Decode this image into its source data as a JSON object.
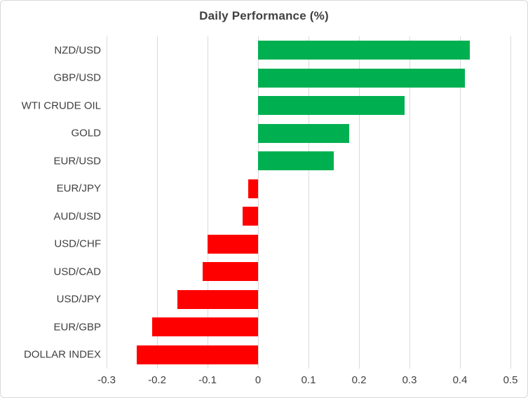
{
  "chart_data": {
    "type": "bar",
    "orientation": "horizontal",
    "title": "Daily Performance (%)",
    "categories": [
      "NZD/USD",
      "GBP/USD",
      "WTI CRUDE OIL",
      "GOLD",
      "EUR/USD",
      "EUR/JPY",
      "AUD/USD",
      "USD/CHF",
      "USD/CAD",
      "USD/JPY",
      "EUR/GBP",
      "DOLLAR INDEX"
    ],
    "values": [
      0.42,
      0.41,
      0.29,
      0.18,
      0.15,
      -0.02,
      -0.03,
      -0.1,
      -0.11,
      -0.16,
      -0.21,
      -0.24
    ],
    "xlim": [
      -0.3,
      0.5
    ],
    "ticks": [
      {
        "value": -0.3,
        "label": "-0.3"
      },
      {
        "value": -0.2,
        "label": "-0.2"
      },
      {
        "value": -0.1,
        "label": "-0.1"
      },
      {
        "value": 0.0,
        "label": "0"
      },
      {
        "value": 0.1,
        "label": "0.1"
      },
      {
        "value": 0.2,
        "label": "0.2"
      },
      {
        "value": 0.3,
        "label": "0.3"
      },
      {
        "value": 0.4,
        "label": "0.4"
      },
      {
        "value": 0.5,
        "label": "0.5"
      }
    ],
    "positive_color": "#00B050",
    "negative_color": "#FF0000",
    "grid": true,
    "legend": false,
    "xlabel": "",
    "ylabel": ""
  }
}
